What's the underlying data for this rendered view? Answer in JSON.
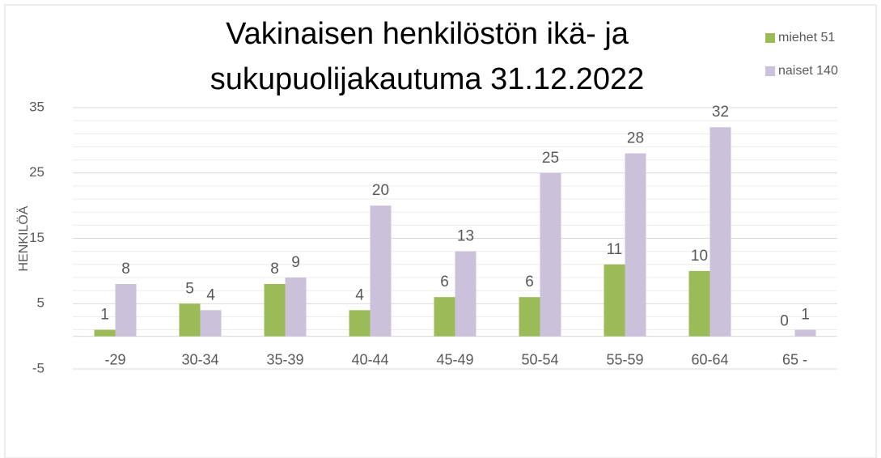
{
  "chart_data": {
    "type": "bar",
    "title": "Vakinaisen henkilöstön ikä- ja sukupuolijakautuma 31.12.2022",
    "y_label": "HENKILÖÄ",
    "categories": [
      "-29",
      "30-34",
      "35-39",
      "40-44",
      "45-49",
      "50-54",
      "55-59",
      "60-64",
      "65 -"
    ],
    "series": [
      {
        "name": "miehet 51",
        "color": "#9bbb59",
        "values": [
          1,
          5,
          8,
          4,
          6,
          6,
          11,
          10,
          0
        ]
      },
      {
        "name": "naiset 140",
        "color": "#ccc1da",
        "values": [
          8,
          4,
          9,
          20,
          13,
          25,
          28,
          32,
          1
        ]
      }
    ],
    "ylim": [
      -5,
      35
    ],
    "yticks": [
      -5,
      5,
      15,
      25,
      35
    ],
    "minor_yticks": [
      1,
      3,
      7,
      9,
      11,
      13,
      17,
      19,
      21,
      23,
      27,
      29,
      31,
      33
    ],
    "grid": true,
    "legend": "top-right"
  }
}
